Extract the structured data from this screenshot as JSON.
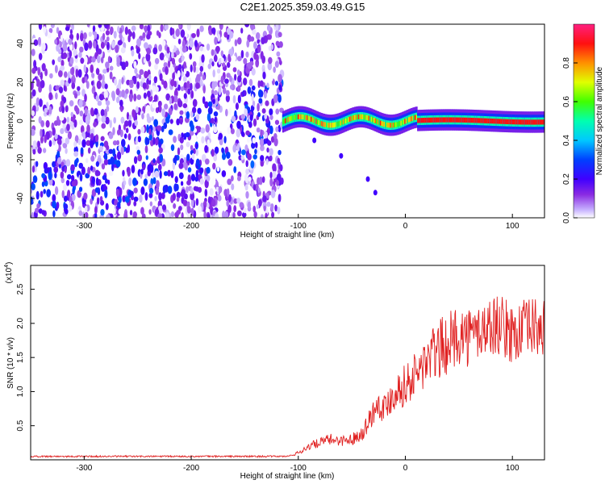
{
  "title": "C2E1.2025.359.03.49.G15",
  "colors": {
    "snr_line": "#e02020",
    "axis": "#000000",
    "colormap": [
      "#ffffff",
      "#c8b4ff",
      "#8a2be2",
      "#5000ff",
      "#0000ff",
      "#0096ff",
      "#00ffff",
      "#00ff00",
      "#ffff00",
      "#ff8000",
      "#ff0000",
      "#ff0080"
    ]
  },
  "chart_data": [
    {
      "type": "heatmap",
      "title": "",
      "xlabel": "Height of straight line (km)",
      "ylabel": "Frequency (Hz)",
      "xlim": [
        -350,
        130
      ],
      "ylim": [
        -50,
        50
      ],
      "xticks": [
        -300,
        -200,
        -100,
        0,
        100
      ],
      "yticks": [
        -40,
        -20,
        0,
        20,
        40
      ],
      "grid": false,
      "legend": "none",
      "colorbar": {
        "label": "Normalized spectral amplitude",
        "range": [
          0,
          1
        ],
        "ticks": [
          "0.0",
          "0.2",
          "0.4",
          "0.6",
          "0.8"
        ],
        "position": "right"
      },
      "features": {
        "scatter_region_x": [
          -350,
          -115
        ],
        "scatter_y_range": [
          -50,
          50
        ],
        "scatter_amplitude": 0.25,
        "line_region_x": [
          -115,
          130
        ],
        "line_center_hz": 0,
        "line_amplitude": 0.9
      }
    },
    {
      "type": "line",
      "title": "",
      "xlabel": "Height of straight line (km)",
      "ylabel": "SNR (10 * v/v)",
      "y_multiplier": "(x10",
      "y_multiplier_exp": "4",
      "xlim": [
        -350,
        130
      ],
      "ylim": [
        0,
        2.85
      ],
      "xticks": [
        -300,
        -200,
        -100,
        0,
        100
      ],
      "yticks": [
        "0.5",
        "1.0",
        "1.5",
        "2.0",
        "2.5"
      ],
      "grid": false,
      "legend": "none",
      "series": [
        {
          "x": [
            -350,
            -300,
            -250,
            -200,
            -150,
            -110,
            -100,
            -90,
            -80,
            -70,
            -60,
            -50,
            -40,
            -30,
            -25,
            -20,
            -10,
            0,
            10,
            20,
            30,
            40,
            50,
            60,
            70,
            80,
            85,
            90,
            100,
            110,
            120,
            130
          ],
          "y": [
            0.05,
            0.05,
            0.05,
            0.05,
            0.05,
            0.05,
            0.1,
            0.2,
            0.25,
            0.3,
            0.28,
            0.3,
            0.4,
            0.7,
            0.85,
            0.75,
            1.0,
            1.1,
            1.25,
            1.45,
            1.6,
            1.7,
            1.85,
            1.8,
            1.9,
            1.95,
            2.0,
            1.95,
            1.85,
            1.9,
            1.95,
            1.9
          ]
        }
      ]
    }
  ]
}
